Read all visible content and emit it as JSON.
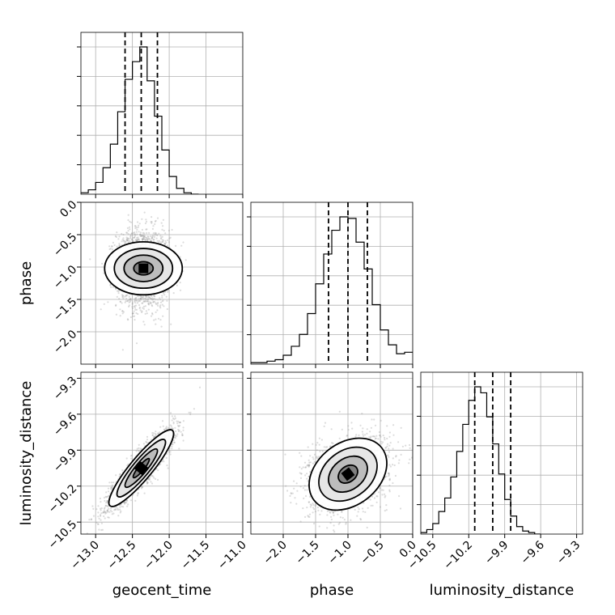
{
  "chart_data": {
    "type": "corner",
    "parameters": [
      {
        "name": "geocent_time",
        "range": [
          -13.2,
          -11.0
        ],
        "ticks": [
          -13.0,
          -12.5,
          -12.0,
          -11.5,
          -11.0
        ],
        "tick_labels": [
          "−13.0",
          "−12.5",
          "−12.0",
          "−11.5",
          "−11.0"
        ],
        "quantiles": [
          -12.6,
          -12.38,
          -12.16
        ]
      },
      {
        "name": "phase",
        "range": [
          -2.5,
          0.0
        ],
        "ticks": [
          -2.0,
          -1.5,
          -1.0,
          -0.5,
          0.0
        ],
        "tick_labels": [
          "−2.0",
          "−1.5",
          "−1.0",
          "−0.5",
          "0.0"
        ],
        "quantiles": [
          -1.3,
          -1.0,
          -0.7
        ]
      },
      {
        "name": "luminosity_distance",
        "range": [
          -10.6,
          -9.25
        ],
        "ticks": [
          -10.5,
          -10.2,
          -9.9,
          -9.6,
          -9.3
        ],
        "tick_labels": [
          "−10.5",
          "−10.2",
          "−9.9",
          "−9.6",
          "−9.3"
        ],
        "quantiles": [
          -10.15,
          -10.0,
          -9.85
        ]
      }
    ],
    "histograms": [
      {
        "parameter": "geocent_time",
        "bin_edges": [
          -13.2,
          -13.1,
          -13.0,
          -12.9,
          -12.8,
          -12.7,
          -12.6,
          -12.5,
          -12.4,
          -12.3,
          -12.2,
          -12.1,
          -12.0,
          -11.9,
          -11.8,
          -11.7,
          -11.6
        ],
        "counts": [
          1,
          3,
          8,
          18,
          34,
          56,
          78,
          90,
          100,
          77,
          53,
          30,
          12,
          4,
          1,
          0
        ]
      },
      {
        "parameter": "phase",
        "bin_edges": [
          -2.5,
          -2.375,
          -2.25,
          -2.125,
          -2.0,
          -1.875,
          -1.75,
          -1.625,
          -1.5,
          -1.375,
          -1.25,
          -1.125,
          -1.0,
          -0.875,
          -0.75,
          -0.625,
          -0.5,
          -0.375,
          -0.25,
          -0.125,
          0.0
        ],
        "counts": [
          1,
          1,
          2,
          3,
          6,
          12,
          20,
          34,
          54,
          74,
          90,
          99,
          98,
          82,
          64,
          40,
          23,
          13,
          7,
          8
        ]
      },
      {
        "parameter": "luminosity_distance",
        "bin_edges": [
          -10.6,
          -10.55,
          -10.5,
          -10.45,
          -10.4,
          -10.35,
          -10.3,
          -10.25,
          -10.2,
          -10.15,
          -10.1,
          -10.05,
          -10.0,
          -9.95,
          -9.9,
          -9.85,
          -9.8,
          -9.75,
          -9.7,
          -9.65,
          -9.6
        ],
        "counts": [
          1,
          3,
          7,
          15,
          24,
          38,
          55,
          73,
          89,
          98,
          94,
          78,
          60,
          40,
          23,
          12,
          5,
          2,
          1,
          0
        ]
      }
    ],
    "pairs": [
      {
        "x": "geocent_time",
        "y": "phase",
        "center": [
          -12.35,
          -1.02
        ],
        "sigma": [
          0.18,
          0.3
        ],
        "rho": 0.0,
        "samples": 2200
      },
      {
        "x": "geocent_time",
        "y": "luminosity_distance",
        "center": [
          -12.38,
          -10.05
        ],
        "sigma": [
          0.22,
          0.16
        ],
        "rho": 0.9,
        "samples": 2200
      },
      {
        "x": "phase",
        "y": "luminosity_distance",
        "center": [
          -1.0,
          -10.1
        ],
        "sigma": [
          0.3,
          0.15
        ],
        "rho": 0.3,
        "samples": 2200
      }
    ],
    "contour_levels_sigma": [
      0.5,
      1.0,
      1.5,
      2.0
    ],
    "grid": true,
    "colors": {
      "line": "#000000",
      "grid": "#b0b0b0",
      "scatter": "#9a9a9a"
    }
  }
}
